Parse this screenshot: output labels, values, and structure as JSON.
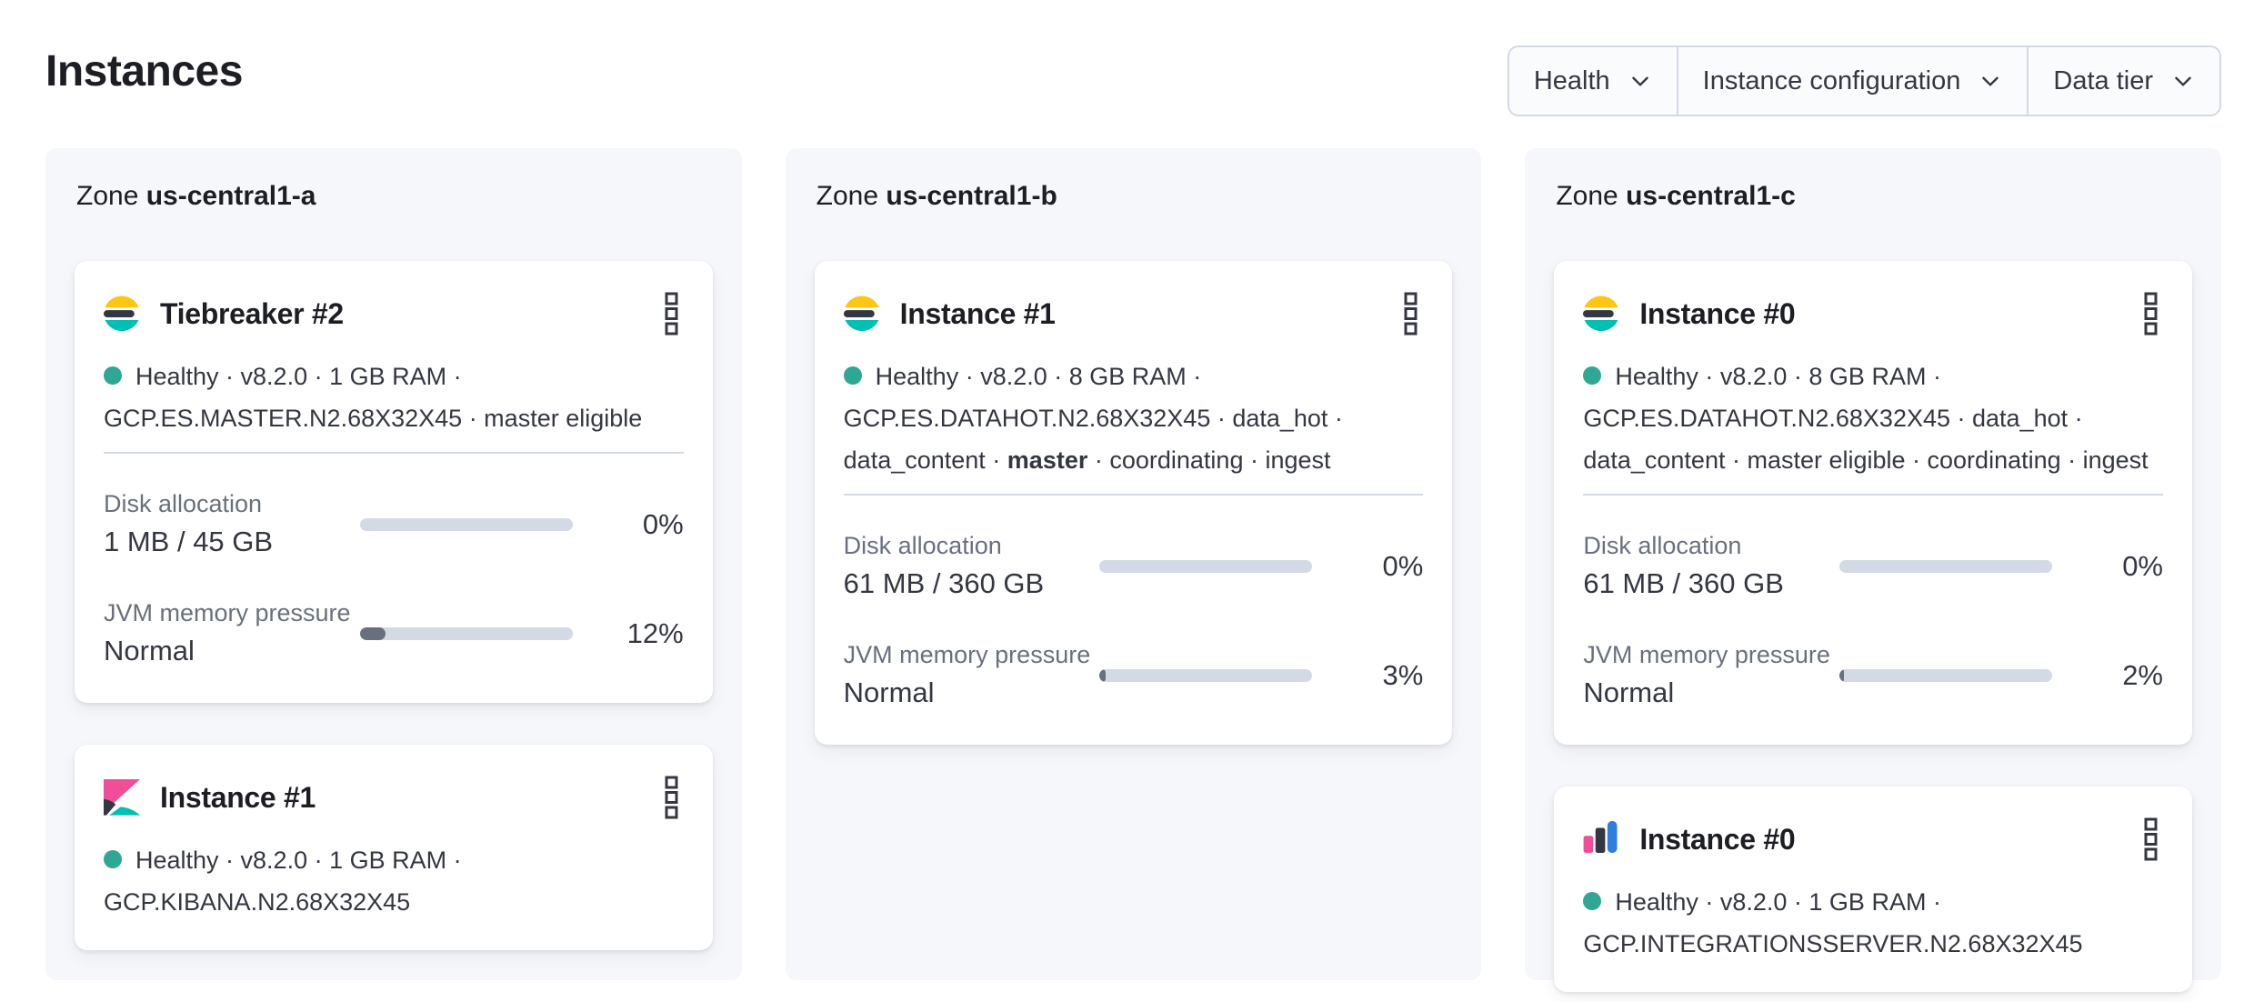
{
  "page": {
    "title": "Instances"
  },
  "filters": [
    {
      "label": "Health",
      "icon": "chevron-down"
    },
    {
      "label": "Instance configuration",
      "icon": "chevron-down"
    },
    {
      "label": "Data tier",
      "icon": "chevron-down"
    }
  ],
  "icons": {
    "menu": "boxes-vertical",
    "dropdown": "chevron-down",
    "logos": [
      "elasticsearch",
      "kibana",
      "integrations-server"
    ]
  },
  "colors": {
    "brand_yellow": "#FEC514",
    "brand_dark": "#343741",
    "brand_teal": "#00BFB3",
    "brand_pink": "#F04E98",
    "brand_blue": "#2F7DE1",
    "health_dot": "#2FA795",
    "progress_track": "#D3DAE6",
    "progress_fill": "#69707D",
    "panel_bg": "#F6F7FB",
    "border": "#D3DAE6"
  },
  "zones": [
    {
      "label": "Zone",
      "name": "us-central1-a",
      "cards": [
        {
          "logo": "elasticsearch",
          "title": "Tiebreaker #2",
          "meta_lines": [
            [
              {
                "t": "Healthy · v8.2.0 · 1 GB RAM ·"
              }
            ],
            [
              {
                "t": "GCP.ES.MASTER.N2.68X32X45 · master eligible"
              }
            ]
          ],
          "metrics": [
            {
              "label": "Disk allocation",
              "value": "1 MB / 45 GB",
              "percent": 0,
              "percent_label": "0%"
            },
            {
              "label": "JVM memory pressure",
              "value": "Normal",
              "percent": 12,
              "percent_label": "12%"
            }
          ]
        },
        {
          "logo": "kibana",
          "title": "Instance #1",
          "meta_lines": [
            [
              {
                "t": "Healthy · v8.2.0 · 1 GB RAM ·"
              }
            ],
            [
              {
                "t": "GCP.KIBANA.N2.68X32X45"
              }
            ]
          ],
          "metrics": []
        }
      ]
    },
    {
      "label": "Zone",
      "name": "us-central1-b",
      "cards": [
        {
          "logo": "elasticsearch",
          "title": "Instance #1",
          "meta_lines": [
            [
              {
                "t": "Healthy · v8.2.0 · 8 GB RAM ·"
              }
            ],
            [
              {
                "t": "GCP.ES.DATAHOT.N2.68X32X45 · data_hot ·"
              }
            ],
            [
              {
                "t": "data_content · "
              },
              {
                "t": "master",
                "b": true
              },
              {
                "t": " · coordinating · ingest"
              }
            ]
          ],
          "metrics": [
            {
              "label": "Disk allocation",
              "value": "61 MB / 360 GB",
              "percent": 0,
              "percent_label": "0%"
            },
            {
              "label": "JVM memory pressure",
              "value": "Normal",
              "percent": 3,
              "percent_label": "3%"
            }
          ]
        }
      ]
    },
    {
      "label": "Zone",
      "name": "us-central1-c",
      "cards": [
        {
          "logo": "elasticsearch",
          "title": "Instance #0",
          "meta_lines": [
            [
              {
                "t": "Healthy · v8.2.0 · 8 GB RAM ·"
              }
            ],
            [
              {
                "t": "GCP.ES.DATAHOT.N2.68X32X45 · data_hot ·"
              }
            ],
            [
              {
                "t": "data_content · master eligible · coordinating · ingest"
              }
            ]
          ],
          "metrics": [
            {
              "label": "Disk allocation",
              "value": "61 MB / 360 GB",
              "percent": 0,
              "percent_label": "0%"
            },
            {
              "label": "JVM memory pressure",
              "value": "Normal",
              "percent": 2,
              "percent_label": "2%"
            }
          ]
        },
        {
          "logo": "integrations-server",
          "title": "Instance #0",
          "meta_lines": [
            [
              {
                "t": "Healthy · v8.2.0 · 1 GB RAM ·"
              }
            ],
            [
              {
                "t": "GCP.INTEGRATIONSSERVER.N2.68X32X45"
              }
            ]
          ],
          "metrics": []
        }
      ]
    }
  ]
}
